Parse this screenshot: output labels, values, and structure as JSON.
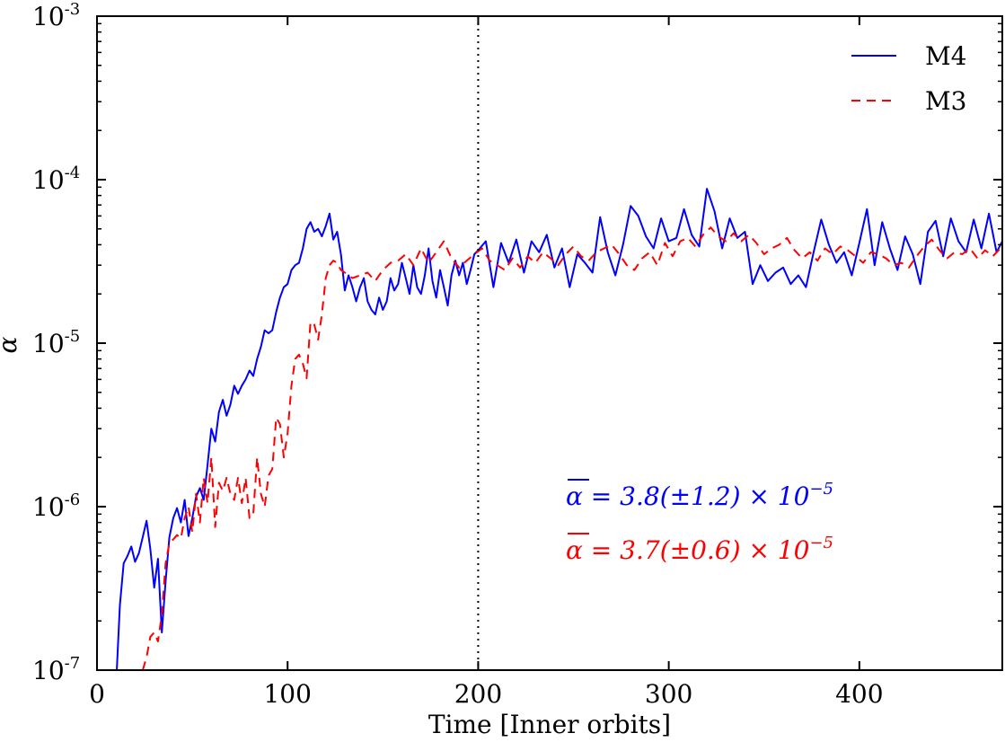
{
  "chart_data": {
    "type": "line",
    "title": "",
    "xlabel": "Time [Inner orbits]",
    "ylabel": "α",
    "yscale": "log",
    "xlim": [
      0,
      475
    ],
    "ylim": [
      1e-07,
      0.001
    ],
    "xticks": [
      0,
      100,
      200,
      300,
      400
    ],
    "xtick_labels": [
      "0",
      "100",
      "200",
      "300",
      "400"
    ],
    "ytick_labels": [
      {
        "base": "10",
        "exp": "-7",
        "value": 1e-07
      },
      {
        "base": "10",
        "exp": "-6",
        "value": 1e-06
      },
      {
        "base": "10",
        "exp": "-5",
        "value": 1e-05
      },
      {
        "base": "10",
        "exp": "-4",
        "value": 0.0001
      },
      {
        "base": "10",
        "exp": "-3",
        "value": 0.001
      }
    ],
    "vline": {
      "x": 200,
      "style": "dotted",
      "color": "#000000"
    },
    "legend_position": "top-right",
    "series": [
      {
        "name": "M4",
        "color": "#0000ff",
        "style": "solid",
        "x": [
          10,
          12,
          14,
          16,
          18,
          20,
          22,
          24,
          26,
          28,
          30,
          32,
          34,
          36,
          38,
          40,
          42,
          44,
          46,
          48,
          50,
          52,
          54,
          56,
          58,
          60,
          62,
          64,
          66,
          68,
          70,
          72,
          74,
          76,
          78,
          80,
          82,
          84,
          86,
          88,
          90,
          92,
          94,
          96,
          98,
          100,
          102,
          104,
          106,
          108,
          110,
          112,
          114,
          116,
          118,
          120,
          122,
          124,
          126,
          128,
          130,
          132,
          134,
          136,
          138,
          140,
          142,
          144,
          146,
          148,
          150,
          152,
          154,
          156,
          158,
          160,
          162,
          164,
          166,
          168,
          170,
          172,
          174,
          176,
          178,
          180,
          182,
          184,
          186,
          188,
          190,
          192,
          194,
          196,
          198,
          200,
          204,
          208,
          212,
          216,
          220,
          224,
          228,
          232,
          236,
          240,
          244,
          248,
          252,
          256,
          260,
          264,
          268,
          272,
          276,
          280,
          284,
          288,
          292,
          296,
          300,
          304,
          308,
          312,
          316,
          320,
          324,
          328,
          332,
          336,
          340,
          344,
          348,
          352,
          356,
          360,
          364,
          368,
          372,
          376,
          380,
          384,
          388,
          392,
          396,
          400,
          404,
          408,
          412,
          416,
          420,
          424,
          428,
          432,
          436,
          440,
          444,
          448,
          452,
          456,
          460,
          464,
          468,
          472,
          475
        ],
        "values": [
          8e-08,
          2.5e-07,
          4.5e-07,
          5e-07,
          5.7e-07,
          4.6e-07,
          5.2e-07,
          6.5e-07,
          8.2e-07,
          5.5e-07,
          3.2e-07,
          4.8e-07,
          1.7e-07,
          3.5e-07,
          6.5e-07,
          8.5e-07,
          9.8e-07,
          8e-07,
          1.1e-06,
          6.6e-07,
          8.5e-07,
          1.15e-06,
          1.3e-06,
          1.1e-06,
          1.8e-06,
          3e-06,
          2.5e-06,
          3.8e-06,
          4.5e-06,
          3.6e-06,
          4.2e-06,
          5.5e-06,
          4.9e-06,
          5.5e-06,
          6e-06,
          6.8e-06,
          6.3e-06,
          8e-06,
          9.5e-06,
          1.2e-05,
          1.15e-05,
          1.2e-05,
          1.55e-05,
          1.9e-05,
          2.2e-05,
          2.3e-05,
          2.8e-05,
          3e-05,
          3.1e-05,
          3.8e-05,
          5e-05,
          5.5e-05,
          4.8e-05,
          5e-05,
          4.5e-05,
          5.2e-05,
          6.2e-05,
          4.3e-05,
          4.8e-05,
          3.5e-05,
          2.1e-05,
          2.6e-05,
          2.2e-05,
          1.8e-05,
          2.2e-05,
          2.5e-05,
          1.8e-05,
          1.6e-05,
          1.5e-05,
          1.9e-05,
          1.6e-05,
          1.8e-05,
          2.5e-05,
          2.1e-05,
          2.3e-05,
          3.1e-05,
          2.5e-05,
          2e-05,
          3e-05,
          2.2e-05,
          2e-05,
          2.6e-05,
          3.8e-05,
          2.4e-05,
          1.9e-05,
          2.8e-05,
          2.2e-05,
          1.7e-05,
          2.6e-05,
          3.2e-05,
          2.6e-05,
          3.1e-05,
          2.3e-05,
          2.8e-05,
          3.5e-05,
          3.7e-05,
          4.2e-05,
          2.2e-05,
          4.1e-05,
          3.1e-05,
          4.3e-05,
          2.7e-05,
          4.2e-05,
          3.6e-05,
          4.6e-05,
          2.9e-05,
          3.8e-05,
          2.2e-05,
          3.5e-05,
          3.1e-05,
          2.7e-05,
          5.9e-05,
          3.6e-05,
          2.6e-05,
          4e-05,
          6.9e-05,
          6e-05,
          4.5e-05,
          3.8e-05,
          5.8e-05,
          4.2e-05,
          4.4e-05,
          6.6e-05,
          4.6e-05,
          3.9e-05,
          8.8e-05,
          6.4e-05,
          3.8e-05,
          5.8e-05,
          4.4e-05,
          4.8e-05,
          2.3e-05,
          3e-05,
          2.4e-05,
          2.7e-05,
          2.9e-05,
          2.3e-05,
          2.6e-05,
          2.2e-05,
          3.6e-05,
          5.7e-05,
          4e-05,
          3.1e-05,
          3.6e-05,
          2.6e-05,
          4.1e-05,
          6.6e-05,
          3e-05,
          5.5e-05,
          3.8e-05,
          2.8e-05,
          4.5e-05,
          3.5e-05,
          2.3e-05,
          4.8e-05,
          5.6e-05,
          3.4e-05,
          5.8e-05,
          4.2e-05,
          3.6e-05,
          5.7e-05,
          3.8e-05,
          6.2e-05,
          3.6e-05,
          4.2e-05
        ]
      },
      {
        "name": "M3",
        "color": "#ff0000",
        "style": "dashed",
        "x": [
          24,
          26,
          28,
          30,
          32,
          34,
          36,
          38,
          40,
          42,
          44,
          46,
          48,
          50,
          52,
          54,
          56,
          58,
          60,
          62,
          64,
          66,
          68,
          70,
          72,
          74,
          76,
          78,
          80,
          82,
          84,
          86,
          88,
          90,
          92,
          94,
          96,
          98,
          100,
          102,
          104,
          106,
          108,
          110,
          112,
          114,
          116,
          118,
          120,
          122,
          124,
          126,
          128,
          130,
          134,
          138,
          142,
          146,
          150,
          154,
          158,
          162,
          166,
          170,
          174,
          178,
          182,
          186,
          190,
          194,
          198,
          202,
          206,
          210,
          214,
          218,
          222,
          226,
          230,
          234,
          238,
          242,
          246,
          250,
          254,
          258,
          262,
          266,
          270,
          274,
          278,
          282,
          286,
          290,
          294,
          298,
          302,
          306,
          310,
          314,
          318,
          322,
          326,
          330,
          334,
          338,
          342,
          346,
          350,
          354,
          358,
          362,
          366,
          370,
          374,
          378,
          382,
          386,
          390,
          394,
          398,
          402,
          406,
          410,
          414,
          418,
          422,
          426,
          430,
          434,
          438,
          442,
          446,
          450,
          454,
          458,
          462,
          466,
          470,
          475
        ],
        "values": [
          1e-07,
          1.2e-07,
          1.6e-07,
          1.7e-07,
          1.5e-07,
          2.2e-07,
          4.5e-07,
          6e-07,
          6.3e-07,
          6.7e-07,
          6.4e-07,
          8.5e-07,
          1e-06,
          7e-07,
          1.2e-06,
          8e-07,
          1.5e-06,
          1.05e-06,
          2e-06,
          7.5e-07,
          1.4e-06,
          1.25e-06,
          1.5e-06,
          1.2e-06,
          1.1e-06,
          1.5e-06,
          1.05e-06,
          1.5e-06,
          8.5e-07,
          9e-07,
          2e-06,
          1.2e-06,
          1e-06,
          1.55e-06,
          1.7e-06,
          3.5e-06,
          3.2e-06,
          2e-06,
          2.8e-06,
          5.5e-06,
          8e-06,
          8.5e-06,
          7.5e-06,
          6.1e-06,
          1.35e-05,
          1.3e-05,
          1.05e-05,
          1.5e-05,
          2.5e-05,
          3e-05,
          3.2e-05,
          3.1e-05,
          2.8e-05,
          2.7e-05,
          2.5e-05,
          2.6e-05,
          2.7e-05,
          2.4e-05,
          2.8e-05,
          3.1e-05,
          3.2e-05,
          3.5e-05,
          3e-05,
          3.8e-05,
          3.1e-05,
          3.6e-05,
          4.2e-05,
          3.3e-05,
          2.9e-05,
          3.2e-05,
          3.5e-05,
          3.8e-05,
          3.2e-05,
          3e-05,
          2.8e-05,
          3.3e-05,
          2.9e-05,
          3.4e-05,
          3.1e-05,
          3.6e-05,
          3.3e-05,
          3e-05,
          3.5e-05,
          3.9e-05,
          3.4e-05,
          3.2e-05,
          3.6e-05,
          3.8e-05,
          4e-05,
          3.5e-05,
          3e-05,
          2.8e-05,
          3.3e-05,
          3.6e-05,
          3e-05,
          4.1e-05,
          3.4e-05,
          4.2e-05,
          4.4e-05,
          3.9e-05,
          4.6e-05,
          5.1e-05,
          4.5e-05,
          4.2e-05,
          4.7e-05,
          4.2e-05,
          4.6e-05,
          4.1e-05,
          3.5e-05,
          3.8e-05,
          4e-05,
          4.4e-05,
          3.7e-05,
          3.3e-05,
          3.6e-05,
          3.2e-05,
          3.8e-05,
          3.5e-05,
          3.9e-05,
          3.7e-05,
          3.4e-05,
          3.1e-05,
          3.6e-05,
          3.5e-05,
          3.3e-05,
          3e-05,
          3.1e-05,
          2.9e-05,
          3.4e-05,
          3.9e-05,
          4.3e-05,
          3.7e-05,
          3.3e-05,
          3.6e-05,
          3.5e-05,
          3.8e-05,
          3.3e-05,
          3.7e-05,
          3.4e-05,
          3.9e-05
        ]
      }
    ],
    "annotations": [
      {
        "name": "M4",
        "color": "#0000ff",
        "text": "α = 3.8(±1.2) × 10",
        "exp": "−5"
      },
      {
        "name": "M3",
        "color": "#ff0000",
        "text": "α = 3.7(±0.6) × 10",
        "exp": "−5"
      }
    ]
  }
}
